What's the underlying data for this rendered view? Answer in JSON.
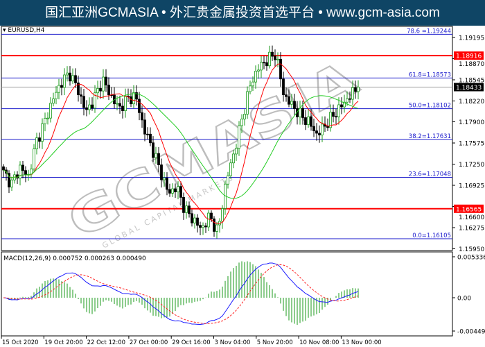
{
  "header": {
    "banner": "国汇亚洲GCMASIA • 外汇贵金属投资首选平台 • www.gcm-asia.com"
  },
  "chart": {
    "symbol": "EURUSD,H4",
    "watermark": "GCMASIA",
    "watermark_sub": "GLOBAL CAPITAL MARKETS",
    "price_axis": [
      "1.19195",
      "1.18870",
      "1.18545",
      "1.18220",
      "1.17900",
      "1.17575",
      "1.17250",
      "1.16925",
      "1.16600",
      "1.16275",
      "1.15950"
    ],
    "current_price": "1.18433",
    "red_levels": [
      {
        "value": 1.18916,
        "label": "1.18916"
      },
      {
        "value": 1.16565,
        "label": "1.16565"
      }
    ],
    "fib_levels": [
      {
        "value": 1.19244,
        "label": "78.6 =1.19244"
      },
      {
        "value": 1.18573,
        "label": "61.8=1.18573"
      },
      {
        "value": 1.18102,
        "label": "50.0=1.18102"
      },
      {
        "value": 1.17631,
        "label": "38.2=1.17631"
      },
      {
        "value": 1.17048,
        "label": "23.6=1.17048"
      },
      {
        "value": 1.16105,
        "label": "0.0=1.16105"
      }
    ],
    "price_path": [
      1.1712,
      1.1695,
      1.172,
      1.1705,
      1.176,
      1.179,
      1.1825,
      1.185,
      1.1865,
      1.184,
      1.1805,
      1.1825,
      1.1855,
      1.183,
      1.181,
      1.1825,
      1.183,
      1.178,
      1.175,
      1.1715,
      1.168,
      1.169,
      1.1655,
      1.164,
      1.1625,
      1.1645,
      1.162,
      1.17,
      1.1745,
      1.18,
      1.185,
      1.1875,
      1.1885,
      1.1895,
      1.183,
      1.1815,
      1.18,
      1.179,
      1.177,
      1.1785,
      1.18,
      1.1815,
      1.183,
      1.1843
    ],
    "colors": {
      "bull": "#1a9a1a",
      "bear": "#000000",
      "ma_fast": "#ff0000",
      "ma_slow": "#22cc22",
      "fib": "#1a1acc",
      "level": "#ff0000",
      "macd": "#1a1aff",
      "signal": "#ff2020",
      "hist": "#1a9a1a"
    },
    "macd": {
      "label": "MACD(12,26,9) 0.000752 0.000263 0.000490",
      "axis": [
        "0.005336",
        "0.00",
        "-0.004499"
      ]
    },
    "time_axis": [
      "15 Oct 2020",
      "19 Oct 20:00",
      "22 Oct 12:00",
      "27 Oct 00:00",
      "29 Oct 16:00",
      "3 Nov 04:00",
      "5 Nov 20:00",
      "10 Nov 08:00",
      "13 Nov 00:00"
    ]
  }
}
